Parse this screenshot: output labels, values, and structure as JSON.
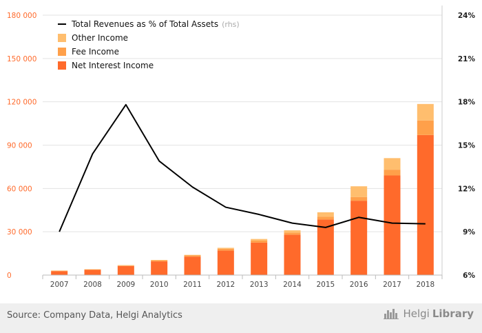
{
  "chart_data": {
    "type": "bar",
    "categories": [
      "2007",
      "2008",
      "2009",
      "2010",
      "2011",
      "2012",
      "2013",
      "2014",
      "2015",
      "2016",
      "2017",
      "2018"
    ],
    "series": [
      {
        "name": "Net Interest Income",
        "kind": "bar",
        "color": "#ff6a2b",
        "values": [
          2700,
          3600,
          6300,
          9500,
          12800,
          17000,
          22500,
          28000,
          38500,
          51500,
          69000,
          97000
        ]
      },
      {
        "name": "Fee Income",
        "kind": "bar",
        "color": "#ffa04a",
        "values": [
          300,
          300,
          300,
          700,
          800,
          1200,
          1500,
          1500,
          2000,
          2500,
          4000,
          10000
        ]
      },
      {
        "name": "Other Income",
        "kind": "bar",
        "color": "#ffbe6e",
        "values": [
          200,
          200,
          300,
          300,
          400,
          700,
          1000,
          1500,
          3000,
          7500,
          8000,
          11500
        ]
      },
      {
        "name": "Total Revenues as % of Total Assets",
        "kind": "line",
        "axis": "right",
        "color": "#000000",
        "values": [
          9.0,
          14.4,
          17.8,
          13.9,
          12.1,
          10.7,
          10.2,
          9.6,
          9.3,
          10.0,
          9.6,
          9.55
        ]
      }
    ],
    "legend_rhs_tag": "(rhs)",
    "y_left": {
      "min": 0,
      "max": 180000,
      "ticks": [
        0,
        30000,
        60000,
        90000,
        120000,
        150000,
        180000
      ],
      "tick_labels": [
        "0",
        "30 000",
        "60 000",
        "90 000",
        "120 000",
        "150 000",
        "180 000"
      ],
      "color": "#ff6a2b"
    },
    "y_right": {
      "min": 6,
      "max": 24,
      "ticks": [
        6,
        9,
        12,
        15,
        18,
        21,
        24
      ],
      "tick_labels": [
        "6%",
        "9%",
        "12%",
        "15%",
        "18%",
        "21%",
        "24%"
      ]
    },
    "legend_position": "top-left",
    "grid": true
  },
  "footer": {
    "source": "Source: Company Data, Helgi Analytics",
    "brand_regular": "Helgi",
    "brand_bold": "Library"
  }
}
